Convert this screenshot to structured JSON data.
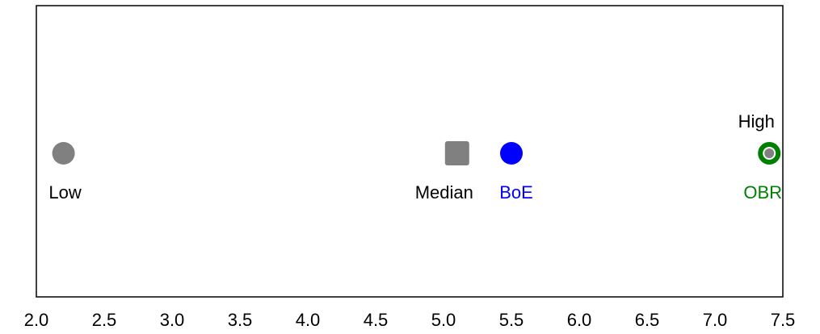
{
  "chart_data": {
    "type": "scatter",
    "title": "",
    "xlabel": "",
    "ylabel": "",
    "xlim": [
      2.0,
      7.5
    ],
    "xticks": [
      "2.0",
      "2.5",
      "3.0",
      "3.5",
      "4.0",
      "4.5",
      "5.0",
      "5.5",
      "6.0",
      "6.5",
      "7.0",
      "7.5"
    ],
    "grid": false,
    "points": [
      {
        "name": "Low",
        "x": 2.2,
        "marker": "circle",
        "color": "#808080",
        "label_pos": "below"
      },
      {
        "name": "Median",
        "x": 5.1,
        "marker": "square",
        "color": "#808080",
        "label_pos": "below"
      },
      {
        "name": "BoE",
        "x": 5.5,
        "marker": "circle",
        "color": "#0000ff",
        "label_pos": "below"
      },
      {
        "name": "OBR",
        "x": 7.4,
        "marker": "ring",
        "color": "#008000",
        "label_pos": "below"
      },
      {
        "name": "High",
        "x": 7.4,
        "marker": "circle-small",
        "color": "#808080",
        "label_pos": "above"
      }
    ]
  }
}
